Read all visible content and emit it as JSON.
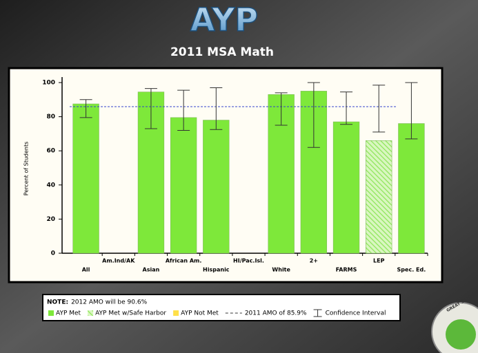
{
  "chart_data": {
    "type": "bar",
    "title": "AYP",
    "subtitle": "2011 MSA Math",
    "y_label": "Percent of Students",
    "categories": [
      "All",
      "Am.Ind/AK",
      "Asian",
      "African Am.",
      "Hispanic",
      "HI/Pac.Isl.",
      "White",
      "2+",
      "FARMS",
      "LEP",
      "Spec. Ed."
    ],
    "series": [
      {
        "name": "AYP Met",
        "color": "#7ee83a",
        "values": [
          87.5,
          null,
          94.5,
          79.5,
          78,
          null,
          93,
          95,
          77,
          null,
          76
        ]
      },
      {
        "name": "AYP Met w/Safe Harbor",
        "color": "#7ee83a",
        "hatch": true,
        "values": [
          null,
          null,
          null,
          null,
          null,
          null,
          null,
          null,
          null,
          66,
          null
        ]
      },
      {
        "name": "AYP Not Met",
        "color": "#ffe04a",
        "values": [
          null,
          null,
          null,
          null,
          null,
          null,
          null,
          null,
          null,
          null,
          null
        ]
      }
    ],
    "error_low": [
      79.5,
      null,
      73,
      72,
      72.5,
      null,
      75,
      62,
      75.5,
      71,
      67
    ],
    "error_high": [
      90,
      null,
      96.5,
      95.5,
      97,
      null,
      94,
      100,
      94.5,
      98.5,
      100
    ],
    "error_label": "Confidence Interval",
    "amo_line": {
      "value": 85.9,
      "label": "2011 AMO of 85.9%",
      "color": "#3344cc"
    },
    "ylim": [
      0,
      100
    ],
    "yticks": [
      0,
      20,
      40,
      60,
      80,
      100
    ],
    "note_label": "NOTE:",
    "note_text": "2012 AMO will be 90.6%",
    "logo_text": "GREAT SENECA"
  }
}
